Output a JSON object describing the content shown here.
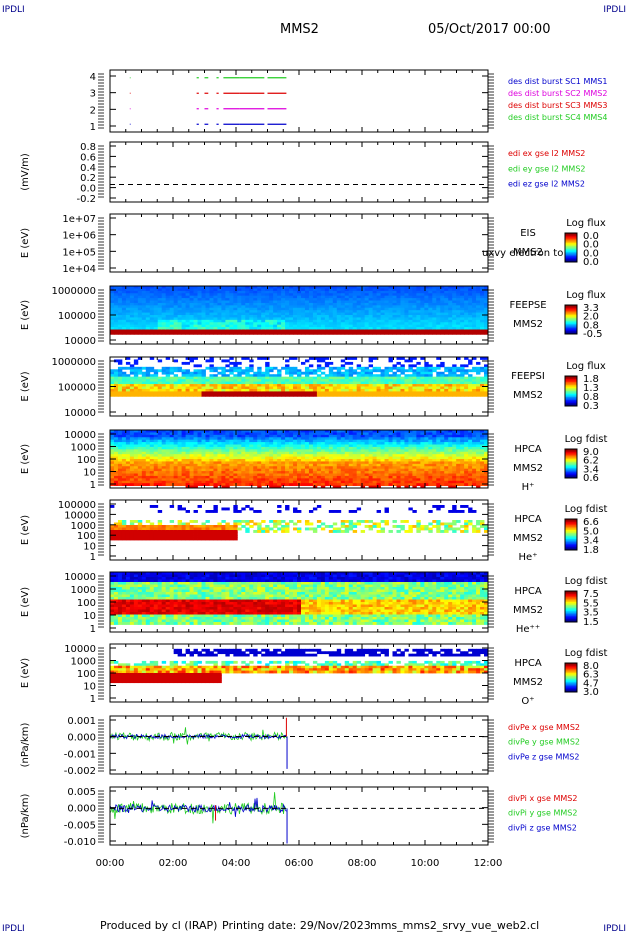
{
  "corners": {
    "tl": "IPDLI",
    "tr": "IPDLI",
    "bl": "IPDLI",
    "br": "IPDLI"
  },
  "header": {
    "spacecraft": "MMS2",
    "date": "05/Oct/2017 00:00"
  },
  "footer": {
    "produced": "Produced by cl (IRAP)",
    "printing": "Printing date: 29/Nov/2023",
    "filename": "mms_mms2_srvy_vue_web2.cl"
  },
  "colors": {
    "red": "#dd0000",
    "green": "#22cc22",
    "blue": "#0000cc",
    "magenta": "#dd00dd",
    "black": "#000000"
  },
  "chart_data": [
    {
      "type": "line",
      "id": "burst",
      "ylim": [
        0.5,
        4.5
      ],
      "yticks": [
        "4",
        "3",
        "2",
        "1"
      ],
      "legend": [
        {
          "name": "des dist burst SC1 MMS1",
          "color": "#0000cc"
        },
        {
          "name": "des dist burst SC2 MMS2",
          "color": "#dd00dd"
        },
        {
          "name": "des dist burst SC3 MMS3",
          "color": "#dd0000"
        },
        {
          "name": "des dist burst SC4 MMS4",
          "color": "#22cc22"
        }
      ],
      "series": [
        {
          "sc": 4,
          "color": "#22cc22",
          "segments": [
            [
              0.63,
              0.65
            ],
            [
              2.75,
              2.82
            ],
            [
              3.0,
              3.12
            ],
            [
              3.38,
              3.45
            ],
            [
              3.6,
              4.1
            ],
            [
              4.1,
              4.9
            ],
            [
              5.0,
              5.6
            ]
          ]
        },
        {
          "sc": 3,
          "color": "#dd0000",
          "segments": [
            [
              0.63,
              0.65
            ],
            [
              2.75,
              2.82
            ],
            [
              3.0,
              3.12
            ],
            [
              3.38,
              3.45
            ],
            [
              3.6,
              4.1
            ],
            [
              4.1,
              4.9
            ],
            [
              5.0,
              5.6
            ]
          ]
        },
        {
          "sc": 2,
          "color": "#dd00dd",
          "segments": [
            [
              0.63,
              0.65
            ],
            [
              2.75,
              2.82
            ],
            [
              3.0,
              3.12
            ],
            [
              3.38,
              3.45
            ],
            [
              3.6,
              4.1
            ],
            [
              4.1,
              4.9
            ],
            [
              5.0,
              5.6
            ]
          ]
        },
        {
          "sc": 1,
          "color": "#0000cc",
          "segments": [
            [
              0.63,
              0.65
            ],
            [
              2.75,
              2.82
            ],
            [
              3.0,
              3.12
            ],
            [
              3.38,
              3.45
            ],
            [
              3.6,
              4.1
            ],
            [
              4.1,
              4.9
            ],
            [
              5.0,
              5.6
            ]
          ]
        }
      ]
    },
    {
      "type": "line",
      "id": "edi",
      "ylabel": "(mV/m)",
      "ylim": [
        -0.35,
        0.85
      ],
      "yticks": [
        "0.8",
        "0.6",
        "0.4",
        "0.2",
        "0.0",
        "-0.2"
      ],
      "legend": [
        {
          "name": "edi ex gse l2 MMS2",
          "color": "#dd0000"
        },
        {
          "name": "edi ey gse l2 MMS2",
          "color": "#22cc22"
        },
        {
          "name": "edi ez gse l2 MMS2",
          "color": "#0000cc"
        }
      ]
    },
    {
      "type": "heatmap",
      "id": "eis",
      "ylabel": "E (eV)",
      "yticks": [
        "1e+07",
        "1e+06",
        "1e+05",
        "1e+04"
      ],
      "labels": [
        "EIS",
        "MMS2"
      ],
      "overlay": "uxvy electron to",
      "colorbar": {
        "title": "Log flux",
        "ticks": [
          "0.0",
          "0.0",
          "0.0",
          "0.0"
        ]
      }
    },
    {
      "type": "heatmap",
      "id": "feepse",
      "ylabel": "E (eV)",
      "yticks": [
        "1000000",
        "100000",
        "10000"
      ],
      "labels": [
        "FEEPSE",
        "MMS2"
      ],
      "colorbar": {
        "title": "Log flux",
        "ticks": [
          "3.3",
          "2.0",
          "0.8",
          "-0.5"
        ]
      }
    },
    {
      "type": "heatmap",
      "id": "feepsi",
      "ylabel": "E (eV)",
      "yticks": [
        "1000000",
        "100000",
        "10000"
      ],
      "labels": [
        "FEEPSI",
        "MMS2"
      ],
      "colorbar": {
        "title": "Log flux",
        "ticks": [
          "1.8",
          "1.3",
          "0.8",
          "0.3"
        ]
      }
    },
    {
      "type": "heatmap",
      "id": "hpca_h",
      "ylabel": "E (eV)",
      "yticks": [
        "10000",
        "1000",
        "100",
        "10",
        "1"
      ],
      "labels": [
        "HPCA",
        "MMS2",
        "H⁺"
      ],
      "colorbar": {
        "title": "Log fdist",
        "ticks": [
          "9.0",
          "6.2",
          "3.4",
          "0.6"
        ]
      }
    },
    {
      "type": "heatmap",
      "id": "hpca_he",
      "ylabel": "E (eV)",
      "yticks": [
        "100000",
        "10000",
        "1000",
        "100",
        "10",
        "1"
      ],
      "labels": [
        "HPCA",
        "MMS2",
        "He⁺"
      ],
      "colorbar": {
        "title": "Log fdist",
        "ticks": [
          "6.6",
          "5.0",
          "3.4",
          "1.8"
        ]
      }
    },
    {
      "type": "heatmap",
      "id": "hpca_hepp",
      "ylabel": "E (eV)",
      "yticks": [
        "10000",
        "1000",
        "100",
        "10",
        "1"
      ],
      "labels": [
        "HPCA",
        "MMS2",
        "He⁺⁺"
      ],
      "colorbar": {
        "title": "Log fdist",
        "ticks": [
          "7.5",
          "5.5",
          "3.5",
          "1.5"
        ]
      }
    },
    {
      "type": "heatmap",
      "id": "hpca_o",
      "ylabel": "E (eV)",
      "yticks": [
        "10000",
        "1000",
        "100",
        "10",
        "1"
      ],
      "labels": [
        "HPCA",
        "MMS2",
        "O⁺"
      ],
      "colorbar": {
        "title": "Log fdist",
        "ticks": [
          "8.0",
          "6.3",
          "4.7",
          "3.0"
        ]
      }
    },
    {
      "type": "line",
      "id": "divpe",
      "ylabel": "(nPa/km)",
      "ylim": [
        -0.0022,
        0.0012
      ],
      "yticks": [
        "0.001",
        "0.000",
        "-0.001",
        "-0.002"
      ],
      "legend": [
        {
          "name": "divPe x gse MMS2",
          "color": "#dd0000"
        },
        {
          "name": "divPe y gse MMS2",
          "color": "#22cc22"
        },
        {
          "name": "divPe z gse MMS2",
          "color": "#0000cc"
        }
      ]
    },
    {
      "type": "line",
      "id": "divpi",
      "ylabel": "(nPa/km)",
      "ylim": [
        -0.012,
        0.007
      ],
      "yticks": [
        "0.005",
        "0.000",
        "-0.005",
        "-0.010"
      ],
      "legend": [
        {
          "name": "divPi x gse MMS2",
          "color": "#dd0000"
        },
        {
          "name": "divPi y gse MMS2",
          "color": "#22cc22"
        },
        {
          "name": "divPi z gse MMS2",
          "color": "#0000cc"
        }
      ]
    }
  ],
  "xaxis": {
    "ticks": [
      "00:00",
      "02:00",
      "04:00",
      "06:00",
      "08:00",
      "10:00",
      "12:00"
    ],
    "xlim": [
      0,
      12
    ]
  }
}
